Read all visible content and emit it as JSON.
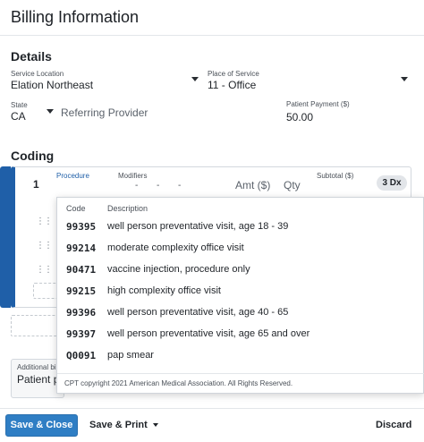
{
  "header": {
    "title": "Billing Information"
  },
  "details": {
    "title": "Details",
    "service_location": {
      "label": "Service Location",
      "value": "Elation Northeast"
    },
    "place_of_service": {
      "label": "Place of Service",
      "value": "11 - Office"
    },
    "state": {
      "label": "State",
      "value": "CA"
    },
    "referring_provider": {
      "placeholder": "Referring Provider"
    },
    "patient_payment": {
      "label": "Patient Payment ($)",
      "value": "50.00"
    }
  },
  "coding": {
    "title": "Coding",
    "row_number": "1",
    "procedure_label": "Procedure",
    "modifiers_label": "Modifiers",
    "modifier_dashes": [
      "-",
      "-",
      "-"
    ],
    "amount_label": "Amt ($)",
    "qty_label": "Qty",
    "subtotal_label": "Subtotal ($)",
    "dx_badge": "3 Dx"
  },
  "dropdown": {
    "col_code": "Code",
    "col_description": "Description",
    "items": [
      {
        "code": "99395",
        "description": "well person preventative visit, age 18 - 39"
      },
      {
        "code": "99214",
        "description": "moderate complexity office visit"
      },
      {
        "code": "90471",
        "description": "vaccine injection, procedure only"
      },
      {
        "code": "99215",
        "description": "high complexity office visit"
      },
      {
        "code": "99396",
        "description": "well person preventative visit, age 40 - 65"
      },
      {
        "code": "99397",
        "description": "well person preventative visit, age 65 and over"
      },
      {
        "code": "Q0091",
        "description": "pap smear"
      }
    ],
    "copyright": "CPT copyright 2021 American Medical Association. All Rights Reserved."
  },
  "additional": {
    "label": "Additional bi",
    "value": "Patient p"
  },
  "footer": {
    "save_close": "Save & Close",
    "save_print": "Save & Print",
    "discard": "Discard"
  },
  "colors": {
    "accent": "#1f5fa8",
    "primary_button": "#2f7ec4"
  }
}
